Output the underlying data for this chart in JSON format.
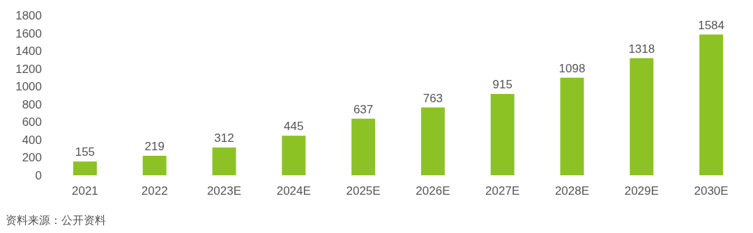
{
  "chart_data": {
    "type": "bar",
    "categories": [
      "2021",
      "2022",
      "2023E",
      "2024E",
      "2025E",
      "2026E",
      "2027E",
      "2028E",
      "2029E",
      "2030E"
    ],
    "values": [
      155,
      219,
      312,
      445,
      637,
      763,
      915,
      1098,
      1318,
      1584
    ],
    "color": "#8cc224",
    "ylim": [
      0,
      1800
    ],
    "yticks": [
      0,
      200,
      400,
      600,
      800,
      1000,
      1200,
      1400,
      1600,
      1800
    ],
    "data_labels": true,
    "annotations": [
      "资料来源：公开资料"
    ]
  }
}
